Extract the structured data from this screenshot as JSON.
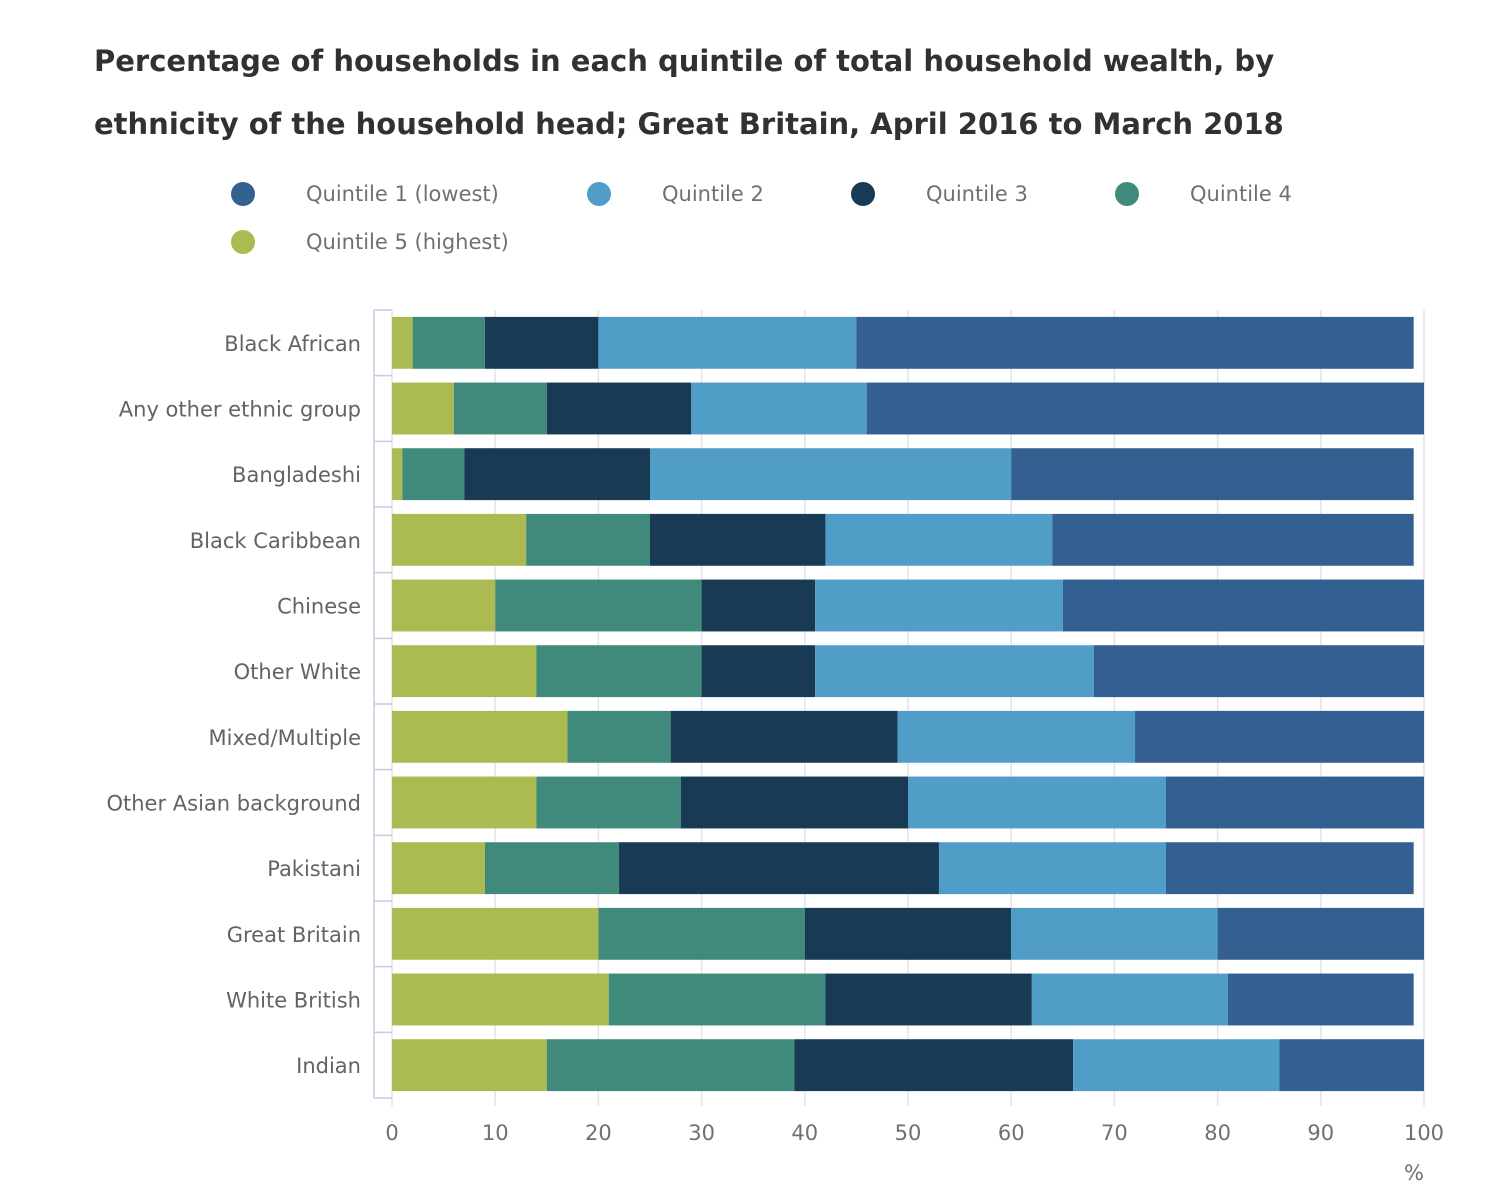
{
  "title": "Percentage of households in each quintile of total household wealth, by ethnicity of the household head; Great Britain, April 2016 to March 2018",
  "title_lines": [
    "Percentage of households in each quintile of total household wealth, by",
    "ethnicity of the household head; Great Britain, April 2016 to March 2018"
  ],
  "legend": {
    "placement": "top",
    "items": [
      {
        "label": "Quintile 1 (lowest)",
        "color": "#335f91"
      },
      {
        "label": "Quintile 2",
        "color": "#509ec8"
      },
      {
        "label": "Quintile 3",
        "color": "#183a54"
      },
      {
        "label": "Quintile 4",
        "color": "#408a7b"
      },
      {
        "label": "Quintile 5 (highest)",
        "color": "#abba51"
      }
    ]
  },
  "chart_data": {
    "type": "bar",
    "orientation": "horizontal",
    "stacked": true,
    "title": "Percentage of households in each quintile of total household wealth, by ethnicity of the household head; Great Britain, April 2016 to March 2018",
    "xlabel": "%",
    "ylabel": "",
    "xlim": [
      0,
      100
    ],
    "xticks": [
      0,
      10,
      20,
      30,
      40,
      50,
      60,
      70,
      80,
      90,
      100
    ],
    "grid": true,
    "categories": [
      "Black African",
      "Any other ethnic group",
      "Bangladeshi",
      "Black Caribbean",
      "Chinese",
      "Other White",
      "Mixed/Multiple",
      "Other Asian background",
      "Pakistani",
      "Great Britain",
      "White British",
      "Indian"
    ],
    "stack_order": [
      "Quintile 5 (highest)",
      "Quintile 4",
      "Quintile 3",
      "Quintile 2",
      "Quintile 1 (lowest)"
    ],
    "series": [
      {
        "name": "Quintile 5 (highest)",
        "color": "#abba51",
        "values": [
          2,
          6,
          1,
          13,
          10,
          14,
          17,
          14,
          9,
          20,
          21,
          15
        ]
      },
      {
        "name": "Quintile 4",
        "color": "#408a7b",
        "values": [
          7,
          9,
          6,
          12,
          20,
          16,
          10,
          14,
          13,
          20,
          21,
          24
        ]
      },
      {
        "name": "Quintile 3",
        "color": "#183a54",
        "values": [
          11,
          14,
          18,
          17,
          11,
          11,
          22,
          22,
          31,
          20,
          20,
          27
        ]
      },
      {
        "name": "Quintile 2",
        "color": "#509ec8",
        "values": [
          25,
          17,
          35,
          22,
          24,
          27,
          23,
          25,
          22,
          20,
          19,
          20
        ]
      },
      {
        "name": "Quintile 1 (lowest)",
        "color": "#335f91",
        "values": [
          54,
          54,
          39,
          35,
          35,
          32,
          28,
          25,
          24,
          20,
          18,
          14
        ]
      }
    ]
  }
}
